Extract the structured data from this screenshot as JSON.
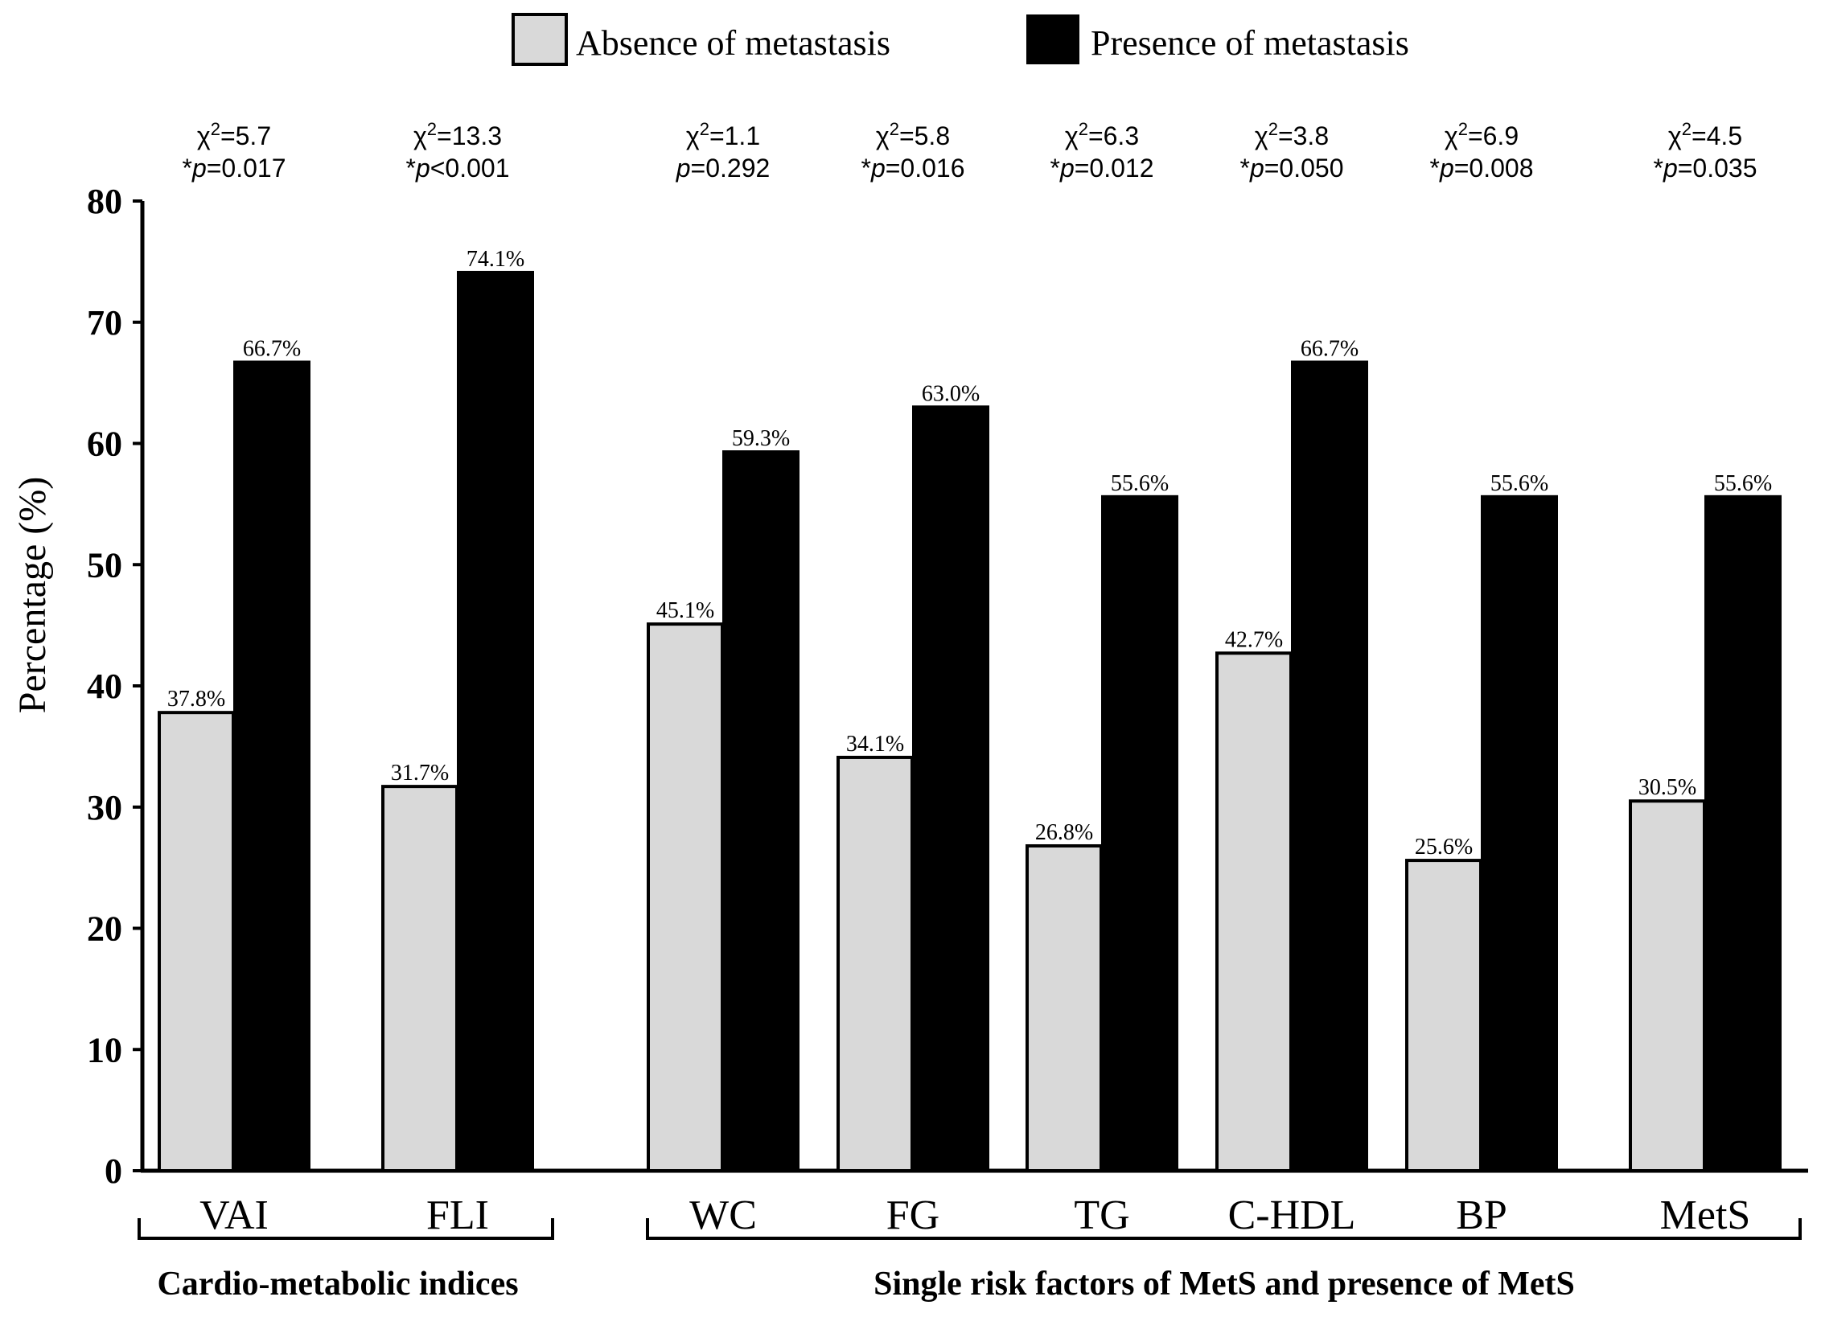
{
  "legend": {
    "absence": "Absence of metastasis",
    "presence": "Presence of metastasis"
  },
  "colors": {
    "absence": "#d9d9d9",
    "presence": "#000000",
    "outline": "#000000"
  },
  "chart_data": {
    "type": "bar",
    "title": "",
    "xlabel": "",
    "ylabel": "Percentage (%)",
    "ylim": [
      0,
      80
    ],
    "yticks": [
      0,
      10,
      20,
      30,
      40,
      50,
      60,
      70,
      80
    ],
    "grid": false,
    "legend_position": "top-center",
    "categories": [
      "VAI",
      "FLI",
      "WC",
      "FG",
      "TG",
      "C-HDL",
      "BP",
      "MetS"
    ],
    "series": [
      {
        "name": "Absence of metastasis",
        "values": [
          37.8,
          31.7,
          45.1,
          34.1,
          26.8,
          42.7,
          25.6,
          30.5
        ],
        "labels": [
          "37.8%",
          "31.7%",
          "45.1%",
          "34.1%",
          "26.8%",
          "42.7%",
          "25.6%",
          "30.5%"
        ]
      },
      {
        "name": "Presence of metastasis",
        "values": [
          66.7,
          74.1,
          59.3,
          63.0,
          55.6,
          66.7,
          55.6,
          55.6
        ],
        "labels": [
          "66.7%",
          "74.1%",
          "59.3%",
          "63.0%",
          "55.6%",
          "66.7%",
          "55.6%",
          "55.6%"
        ]
      }
    ],
    "stats": [
      {
        "chi": "5.7",
        "star": "*",
        "op": "=0.017"
      },
      {
        "chi": "13.3",
        "star": "*",
        "op": "<0.001"
      },
      {
        "chi": "1.1",
        "star": "",
        "op": "=0.292"
      },
      {
        "chi": "5.8",
        "star": "*",
        "op": "=0.016"
      },
      {
        "chi": "6.3",
        "star": "*",
        "op": "=0.012"
      },
      {
        "chi": "3.8",
        "star": "*",
        "op": "=0.050"
      },
      {
        "chi": "6.9",
        "star": "*",
        "op": "=0.008"
      },
      {
        "chi": "4.5",
        "star": "*",
        "op": "=0.035"
      }
    ],
    "groups": [
      {
        "label": "Cardio-metabolic indices",
        "categories": [
          "VAI",
          "FLI"
        ]
      },
      {
        "label": "Single risk factors of MetS and presence of MetS",
        "categories": [
          "WC",
          "FG",
          "TG",
          "C-HDL",
          "BP",
          "MetS"
        ]
      }
    ]
  }
}
